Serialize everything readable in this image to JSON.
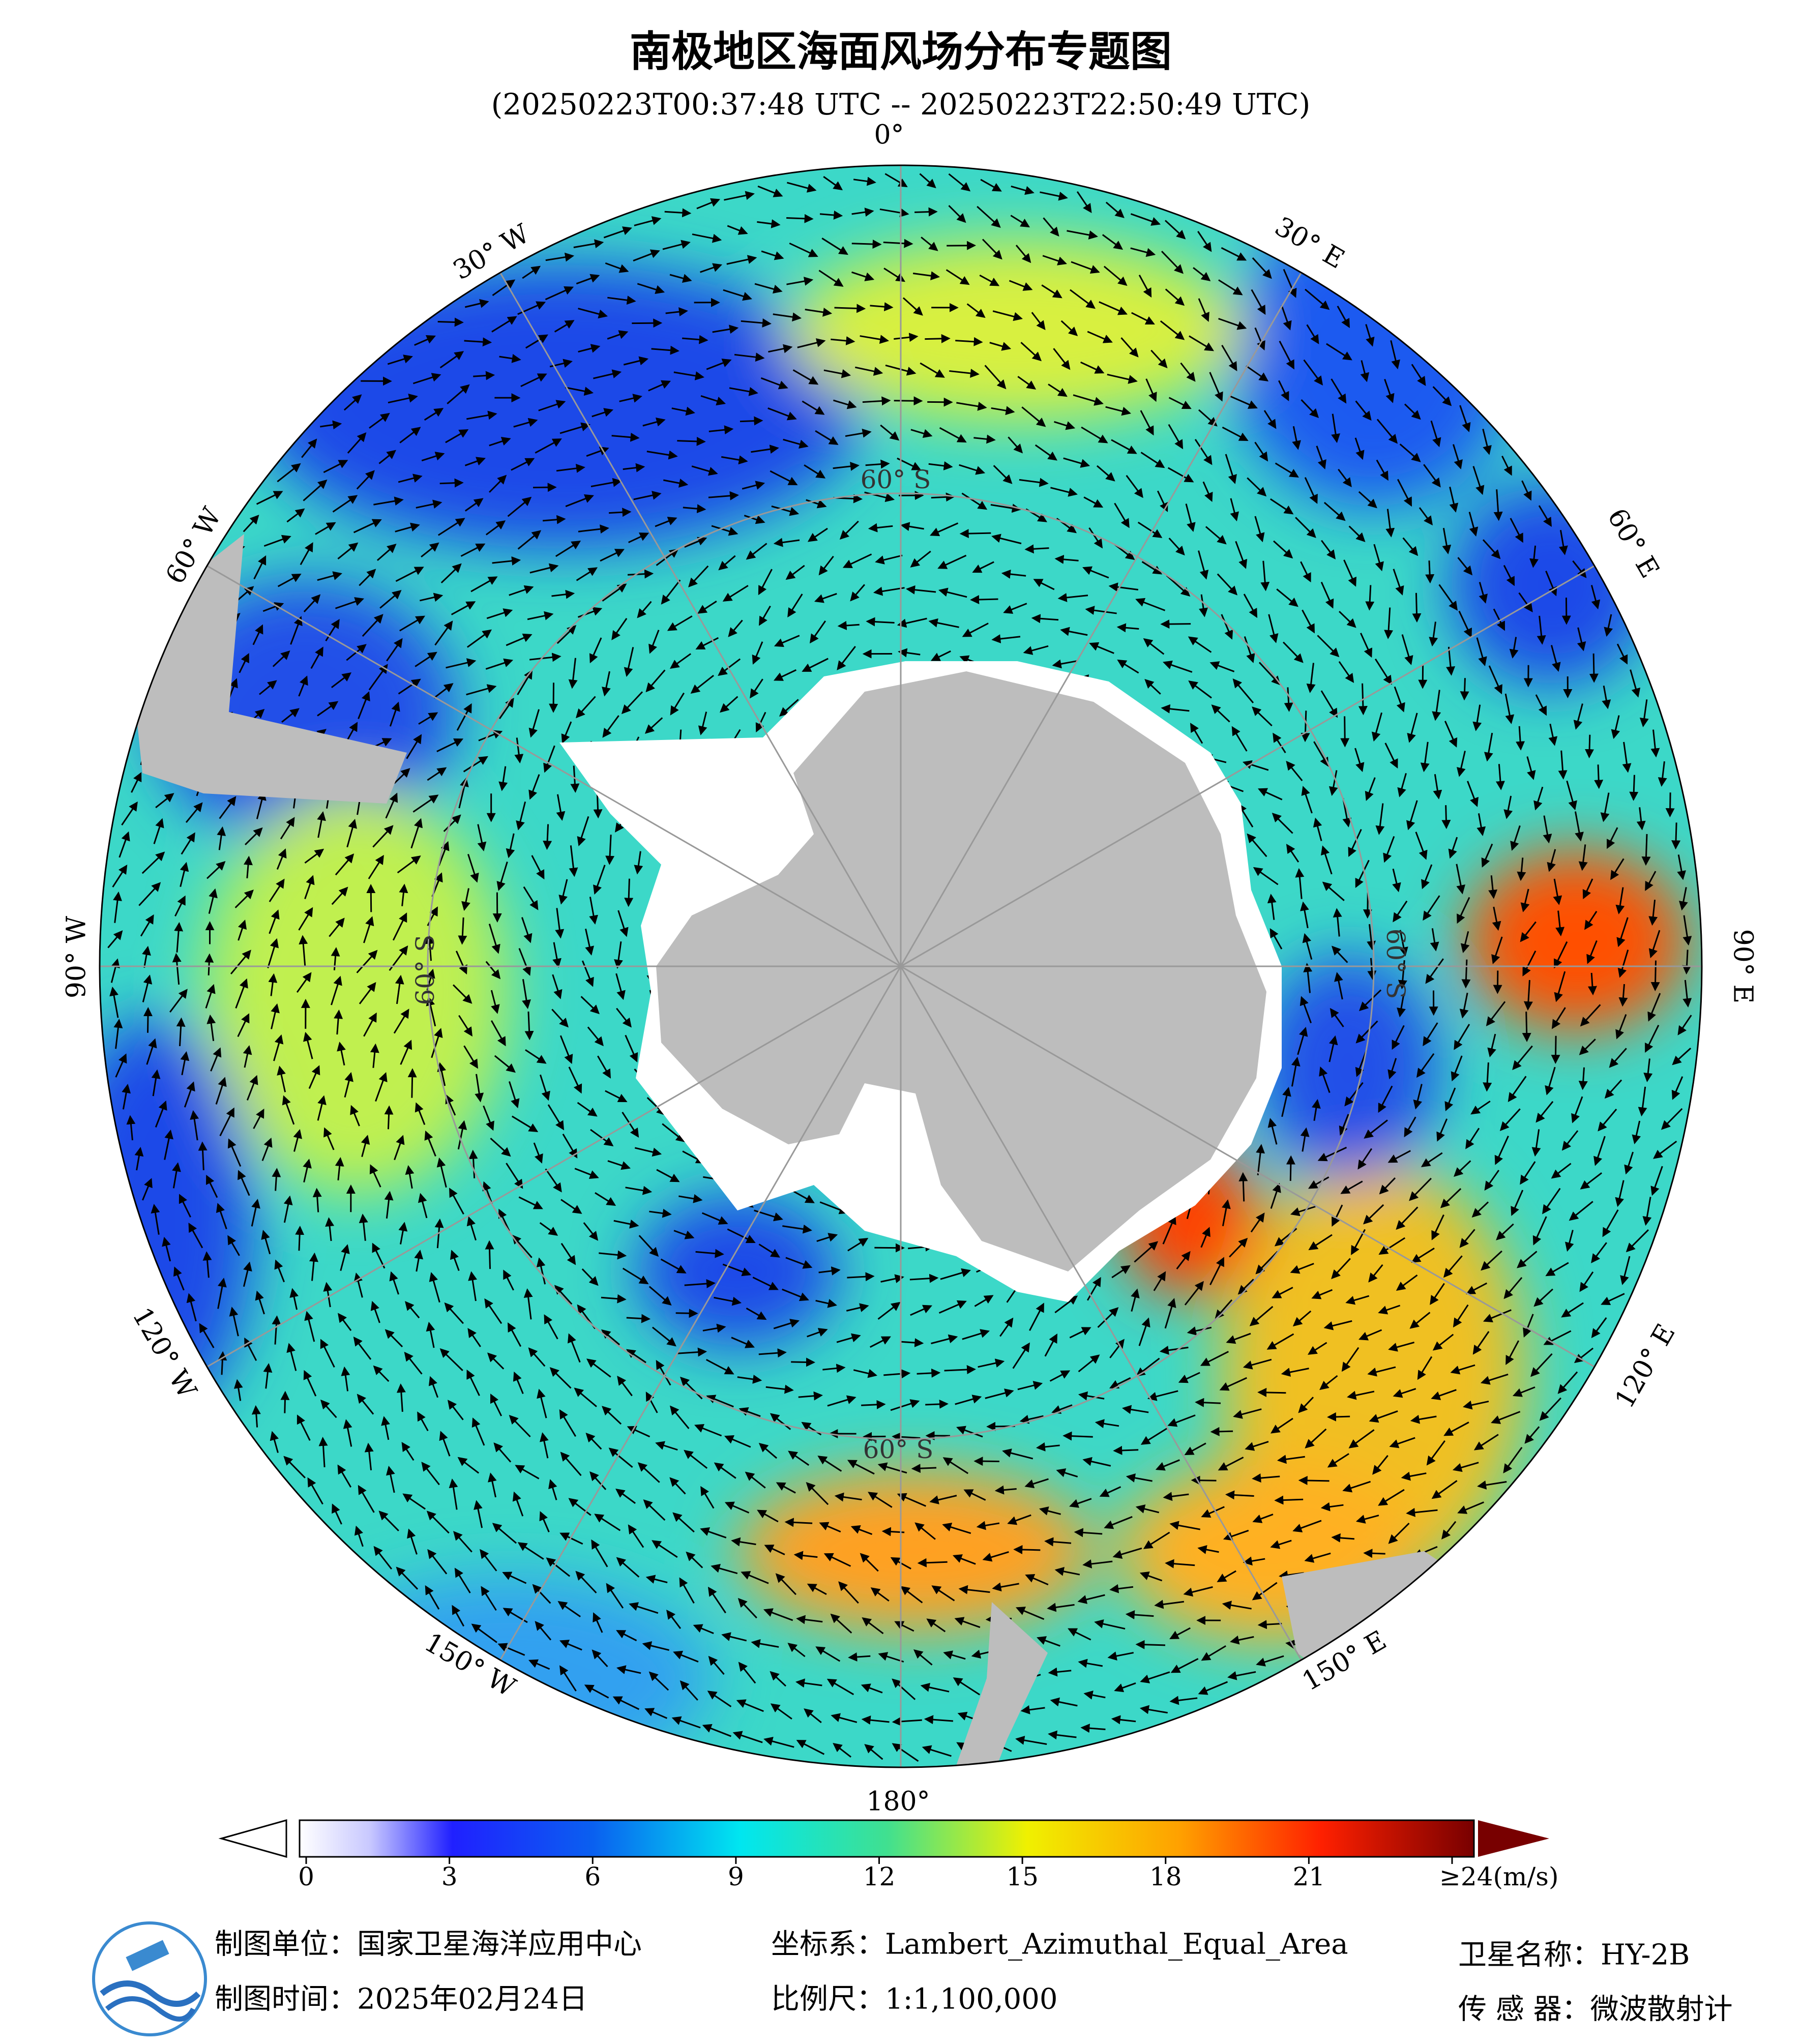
{
  "header": {
    "title": "南极地区海面风场分布专题图",
    "subtitle": "(20250223T00:37:48 UTC -- 20250223T22:50:49 UTC)"
  },
  "map": {
    "lon_labels": [
      "0°",
      "30° E",
      "60° E",
      "90° E",
      "120° E",
      "150° E",
      "180°",
      "150° W",
      "120° W",
      "90° W",
      "60° W",
      "30° W"
    ],
    "lat_labels": [
      "60° S",
      "60° S",
      "60° S",
      "60° S"
    ]
  },
  "colorbar": {
    "range": [
      0,
      24
    ],
    "ticks": [
      0,
      3,
      6,
      9,
      12,
      15,
      18,
      21,
      {
        "value": 24,
        "label": "≥24(m/s)"
      }
    ]
  },
  "footer": {
    "producer": "制图单位：国家卫星海洋应用中心",
    "date": "制图时间：2025年02月24日",
    "crs": "坐标系：Lambert_Azimuthal_Equal_Area",
    "scale": "比例尺：1:1,100,000",
    "satellite": "卫星名称：HY-2B",
    "sensor": "传 感 器：微波散射计"
  }
}
